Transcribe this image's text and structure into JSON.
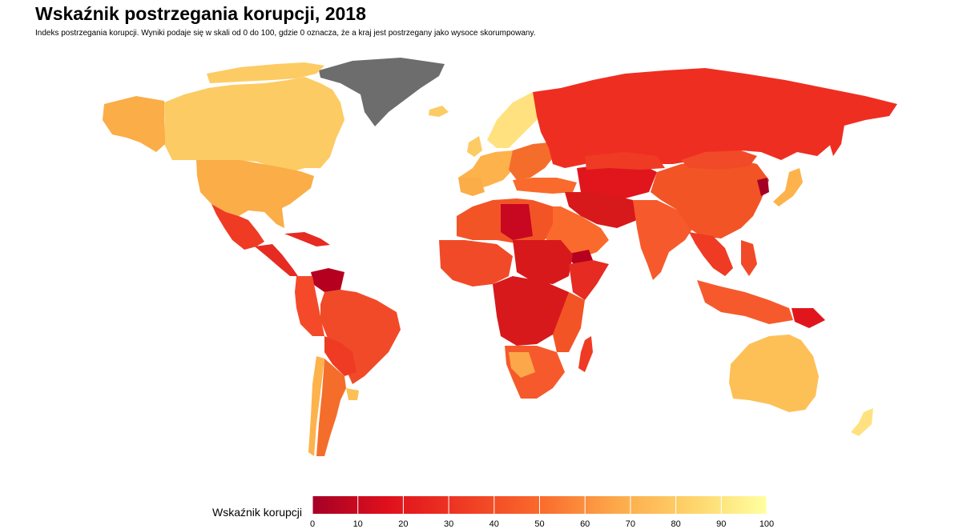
{
  "header": {
    "title": "Wskaźnik postrzegania korupcji, 2018",
    "subtitle": "Indeks postrzegania korupcji. Wyniki podaje się w skali od 0 do 100, gdzie 0 oznacza, że a kraj jest postrzegany jako wysoce skorumpowany."
  },
  "legend": {
    "title": "Wskaźnik korupcji",
    "ticks": [
      "0",
      "10",
      "20",
      "30",
      "40",
      "50",
      "60",
      "70",
      "80",
      "90",
      "100"
    ],
    "min": 0,
    "max": 100,
    "colors": [
      "#a50026",
      "#e0101c",
      "#ef3b24",
      "#fa6a2c",
      "#fca84a",
      "#fed36a",
      "#ffffa0"
    ]
  },
  "colors": {
    "no_data": "#6d6d6d"
  }
}
